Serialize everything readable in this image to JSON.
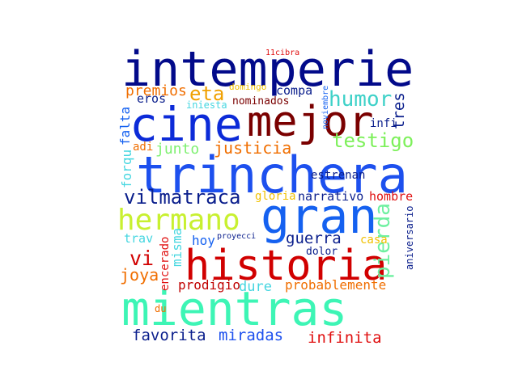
{
  "words": [
    {
      "text": "intemperie",
      "color": "#020a8a"
    },
    {
      "text": "cine",
      "color": "#0c2bd8"
    },
    {
      "text": "mejor",
      "color": "#7a0000"
    },
    {
      "text": "trinchera",
      "color": "#1d50ee"
    },
    {
      "text": "gran",
      "color": "#1561f0"
    },
    {
      "text": "historia",
      "color": "#d10000"
    },
    {
      "text": "mientras",
      "color": "#3df5b5"
    },
    {
      "text": "hermano",
      "color": "#c8f030"
    },
    {
      "text": "vilmatraca",
      "color": "#0a1e8c"
    },
    {
      "text": "humor",
      "color": "#3ed1c8"
    },
    {
      "text": "testigo",
      "color": "#7df05a"
    },
    {
      "text": "eta",
      "color": "#f0a000"
    },
    {
      "text": "justicia",
      "color": "#f06e00"
    },
    {
      "text": "junto",
      "color": "#7ef070"
    },
    {
      "text": "pierda",
      "color": "#6ef0a0"
    },
    {
      "text": "guerra",
      "color": "#0a1e8c"
    },
    {
      "text": "vi",
      "color": "#d10000"
    },
    {
      "text": "joya",
      "color": "#f06e00"
    },
    {
      "text": "favorita",
      "color": "#0a1e8c"
    },
    {
      "text": "miradas",
      "color": "#1d50ee"
    },
    {
      "text": "infinita",
      "color": "#e01010"
    },
    {
      "text": "probablemente",
      "color": "#f06e00"
    },
    {
      "text": "prodigio",
      "color": "#c00000"
    },
    {
      "text": "dure",
      "color": "#45d6e0"
    },
    {
      "text": "premios",
      "color": "#f06e00"
    },
    {
      "text": "compa",
      "color": "#0a1e8c"
    },
    {
      "text": "tres",
      "color": "#0a1e8c"
    },
    {
      "text": "nominados",
      "color": "#7a0000"
    },
    {
      "text": "eros",
      "color": "#0a1e8c"
    },
    {
      "text": "iniesta",
      "color": "#45d6e0"
    },
    {
      "text": "domingo",
      "color": "#f0c000"
    },
    {
      "text": "noviembre",
      "color": "#1561f0"
    },
    {
      "text": "infi",
      "color": "#0a1e8c"
    },
    {
      "text": "forqu",
      "color": "#45d6e0"
    },
    {
      "text": "falta",
      "color": "#1561f0"
    },
    {
      "text": "adi",
      "color": "#f06e00"
    },
    {
      "text": "estrenan",
      "color": "#0a1e8c"
    },
    {
      "text": "gloria",
      "color": "#f0c000"
    },
    {
      "text": "narrativo",
      "color": "#0a1e8c"
    },
    {
      "text": "hombre",
      "color": "#e01010"
    },
    {
      "text": "aniversario",
      "color": "#0a1e8c"
    },
    {
      "text": "trav",
      "color": "#45d6e0"
    },
    {
      "text": "hoy",
      "color": "#1561f0"
    },
    {
      "text": "proyecci",
      "color": "#0a1e8c"
    },
    {
      "text": "misma",
      "color": "#45d6e0"
    },
    {
      "text": "dolor",
      "color": "#0a1e8c"
    },
    {
      "text": "casa",
      "color": "#f0c000"
    },
    {
      "text": "encerado",
      "color": "#e01010"
    },
    {
      "text": "du",
      "color": "#f06e00"
    },
    {
      "text": "11cibra",
      "color": "#e01010"
    }
  ]
}
